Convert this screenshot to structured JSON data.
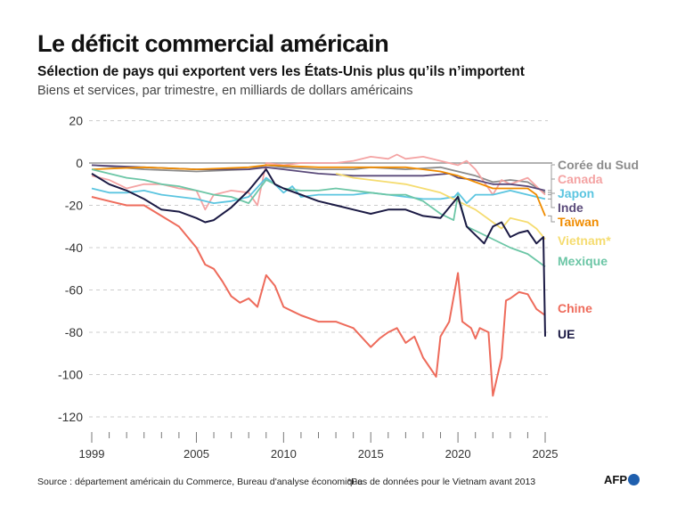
{
  "title": "Le déficit commercial américain",
  "subtitle": "Sélection de pays qui exportent vers les États-Unis plus qu’ils n’importent",
  "subtitle2": "Biens et services, par trimestre, en milliards de dollars américains",
  "source": "Source : département américain du Commerce, Bureau d'analyse économique",
  "note": "*Pas de données pour le Vietnam avant 2013",
  "logo": "AFP",
  "chart_data": {
    "type": "line",
    "xlim": [
      1999,
      2025
    ],
    "ylim": [
      -125,
      22
    ],
    "y_ticks": [
      20,
      0,
      -20,
      -40,
      -60,
      -80,
      -100,
      -120
    ],
    "x_tick_labels": [
      1999,
      2005,
      2010,
      2015,
      2020,
      2025
    ],
    "grid": true,
    "legend": "right-end labels",
    "series": [
      {
        "name": "Corée du Sud",
        "color": "#8c8c8c",
        "x": [
          1999,
          2002,
          2005,
          2008,
          2009,
          2010,
          2012,
          2014,
          2015,
          2017,
          2019,
          2020,
          2021,
          2022,
          2023,
          2024,
          2025
        ],
        "y": [
          -1,
          -3,
          -4,
          -3,
          -1,
          -2,
          -3,
          -3,
          -2,
          -3,
          -2,
          -4,
          -6,
          -9,
          -8,
          -9,
          -14
        ]
      },
      {
        "name": "Canada",
        "color": "#f4a3a3",
        "x": [
          1999,
          2000,
          2001,
          2002,
          2003,
          2004,
          2005,
          2005.5,
          2006,
          2007,
          2008,
          2008.5,
          2009,
          2010,
          2011,
          2012,
          2013,
          2014,
          2015,
          2016,
          2016.5,
          2017,
          2018,
          2019,
          2020,
          2020.5,
          2021,
          2022,
          2022.5,
          2023,
          2024,
          2025
        ],
        "y": [
          -6,
          -8,
          -12,
          -10,
          -10,
          -12,
          -13,
          -22,
          -15,
          -13,
          -14,
          -20,
          0,
          -1,
          0,
          0,
          0,
          1,
          3,
          2,
          4,
          2,
          3,
          1,
          -1,
          1,
          -3,
          -15,
          -8,
          -10,
          -7,
          -15
        ]
      },
      {
        "name": "Japon",
        "color": "#5bc5e0",
        "x": [
          1999,
          2000,
          2001,
          2002,
          2003,
          2004,
          2005,
          2006,
          2007,
          2008,
          2009,
          2009.5,
          2010,
          2010.5,
          2011,
          2012,
          2013,
          2014,
          2015,
          2016,
          2017,
          2018,
          2019,
          2019.8,
          2020,
          2020.5,
          2021,
          2022,
          2023,
          2024,
          2025
        ],
        "y": [
          -12,
          -14,
          -14,
          -13,
          -15,
          -16,
          -17,
          -19,
          -18,
          -16,
          -7,
          -10,
          -14,
          -11,
          -16,
          -15,
          -15,
          -15,
          -14,
          -15,
          -16,
          -17,
          -17,
          -16,
          -14,
          -19,
          -15,
          -15,
          -13,
          -15,
          -17
        ]
      },
      {
        "name": "Inde",
        "color": "#5a4a7a",
        "x": [
          1999,
          2002,
          2005,
          2008,
          2009,
          2010,
          2012,
          2014,
          2016,
          2018,
          2019.5,
          2020,
          2021,
          2022,
          2023,
          2024,
          2025
        ],
        "y": [
          -1,
          -2,
          -3,
          -3,
          -2,
          -3,
          -5,
          -6,
          -6,
          -6,
          -5,
          -7,
          -8,
          -10,
          -10,
          -11,
          -13
        ]
      },
      {
        "name": "Taïwan",
        "color": "#f08c00",
        "x": [
          1999,
          2002,
          2005,
          2008,
          2009,
          2012,
          2015,
          2017,
          2018,
          2019,
          2020,
          2021,
          2022,
          2023,
          2024,
          2024.5,
          2025
        ],
        "y": [
          -3,
          -2,
          -3,
          -2,
          -1,
          -2,
          -2,
          -2,
          -3,
          -4,
          -6,
          -9,
          -12,
          -12,
          -12,
          -15,
          -25
        ]
      },
      {
        "name": "Vietnam*",
        "color": "#f5dc70",
        "x": [
          2013,
          2014,
          2015,
          2016,
          2017,
          2018,
          2019,
          2020,
          2021,
          2022,
          2022.5,
          2023,
          2024,
          2024.5,
          2025
        ],
        "y": [
          -5,
          -7,
          -8,
          -9,
          -10,
          -12,
          -14,
          -18,
          -22,
          -28,
          -31,
          -26,
          -28,
          -31,
          -36
        ]
      },
      {
        "name": "Mexique",
        "color": "#6cc6a6",
        "x": [
          1999,
          2000,
          2001,
          2002,
          2003,
          2004,
          2005,
          2006,
          2007,
          2008,
          2009,
          2010,
          2011,
          2012,
          2013,
          2014,
          2015,
          2016,
          2017,
          2018,
          2019,
          2019.75,
          2020,
          2020.5,
          2021,
          2022,
          2023,
          2024,
          2025
        ],
        "y": [
          -3,
          -5,
          -7,
          -8,
          -10,
          -11,
          -13,
          -15,
          -16,
          -19,
          -8,
          -12,
          -13,
          -13,
          -12,
          -13,
          -14,
          -15,
          -15,
          -18,
          -24,
          -27,
          -15,
          -30,
          -32,
          -36,
          -40,
          -43,
          -49
        ]
      },
      {
        "name": "Chine",
        "color": "#ee6b5b",
        "x": [
          1999,
          2000,
          2001,
          2002,
          2003,
          2004,
          2005,
          2005.5,
          2006,
          2006.5,
          2007,
          2007.5,
          2008,
          2008.5,
          2009,
          2009.5,
          2010,
          2010.5,
          2011,
          2012,
          2013,
          2014,
          2015,
          2015.5,
          2016,
          2016.5,
          2017,
          2017.5,
          2018,
          2018.75,
          2019,
          2019.5,
          2020,
          2020.25,
          2020.75,
          2021,
          2021.25,
          2021.75,
          2022,
          2022.5,
          2022.75,
          2023,
          2023.5,
          2024,
          2024.5,
          2025
        ],
        "y": [
          -16,
          -18,
          -20,
          -20,
          -25,
          -30,
          -40,
          -48,
          -50,
          -56,
          -63,
          -66,
          -64,
          -68,
          -53,
          -58,
          -68,
          -70,
          -72,
          -75,
          -75,
          -78,
          -87,
          -83,
          -80,
          -78,
          -85,
          -82,
          -92,
          -101,
          -82,
          -75,
          -52,
          -75,
          -78,
          -83,
          -78,
          -80,
          -110,
          -92,
          -65,
          -64,
          -61,
          -62,
          -69,
          -72
        ]
      },
      {
        "name": "UE",
        "color": "#1b1a44",
        "x": [
          1999,
          2000,
          2001,
          2002,
          2003,
          2004,
          2005,
          2005.5,
          2006,
          2007,
          2008,
          2009,
          2009.5,
          2010,
          2011,
          2012,
          2013,
          2014,
          2015,
          2016,
          2017,
          2018,
          2019,
          2020,
          2020.5,
          2021,
          2021.5,
          2022,
          2022.5,
          2023,
          2023.5,
          2024,
          2024.5,
          2024.9,
          2025
        ],
        "y": [
          -5,
          -10,
          -13,
          -17,
          -22,
          -23,
          -26,
          -28,
          -27,
          -21,
          -13,
          -3,
          -10,
          -12,
          -15,
          -18,
          -20,
          -22,
          -24,
          -22,
          -22,
          -25,
          -26,
          -16,
          -30,
          -34,
          -38,
          -30,
          -28,
          -35,
          -33,
          -32,
          -38,
          -35,
          -82
        ]
      }
    ]
  }
}
